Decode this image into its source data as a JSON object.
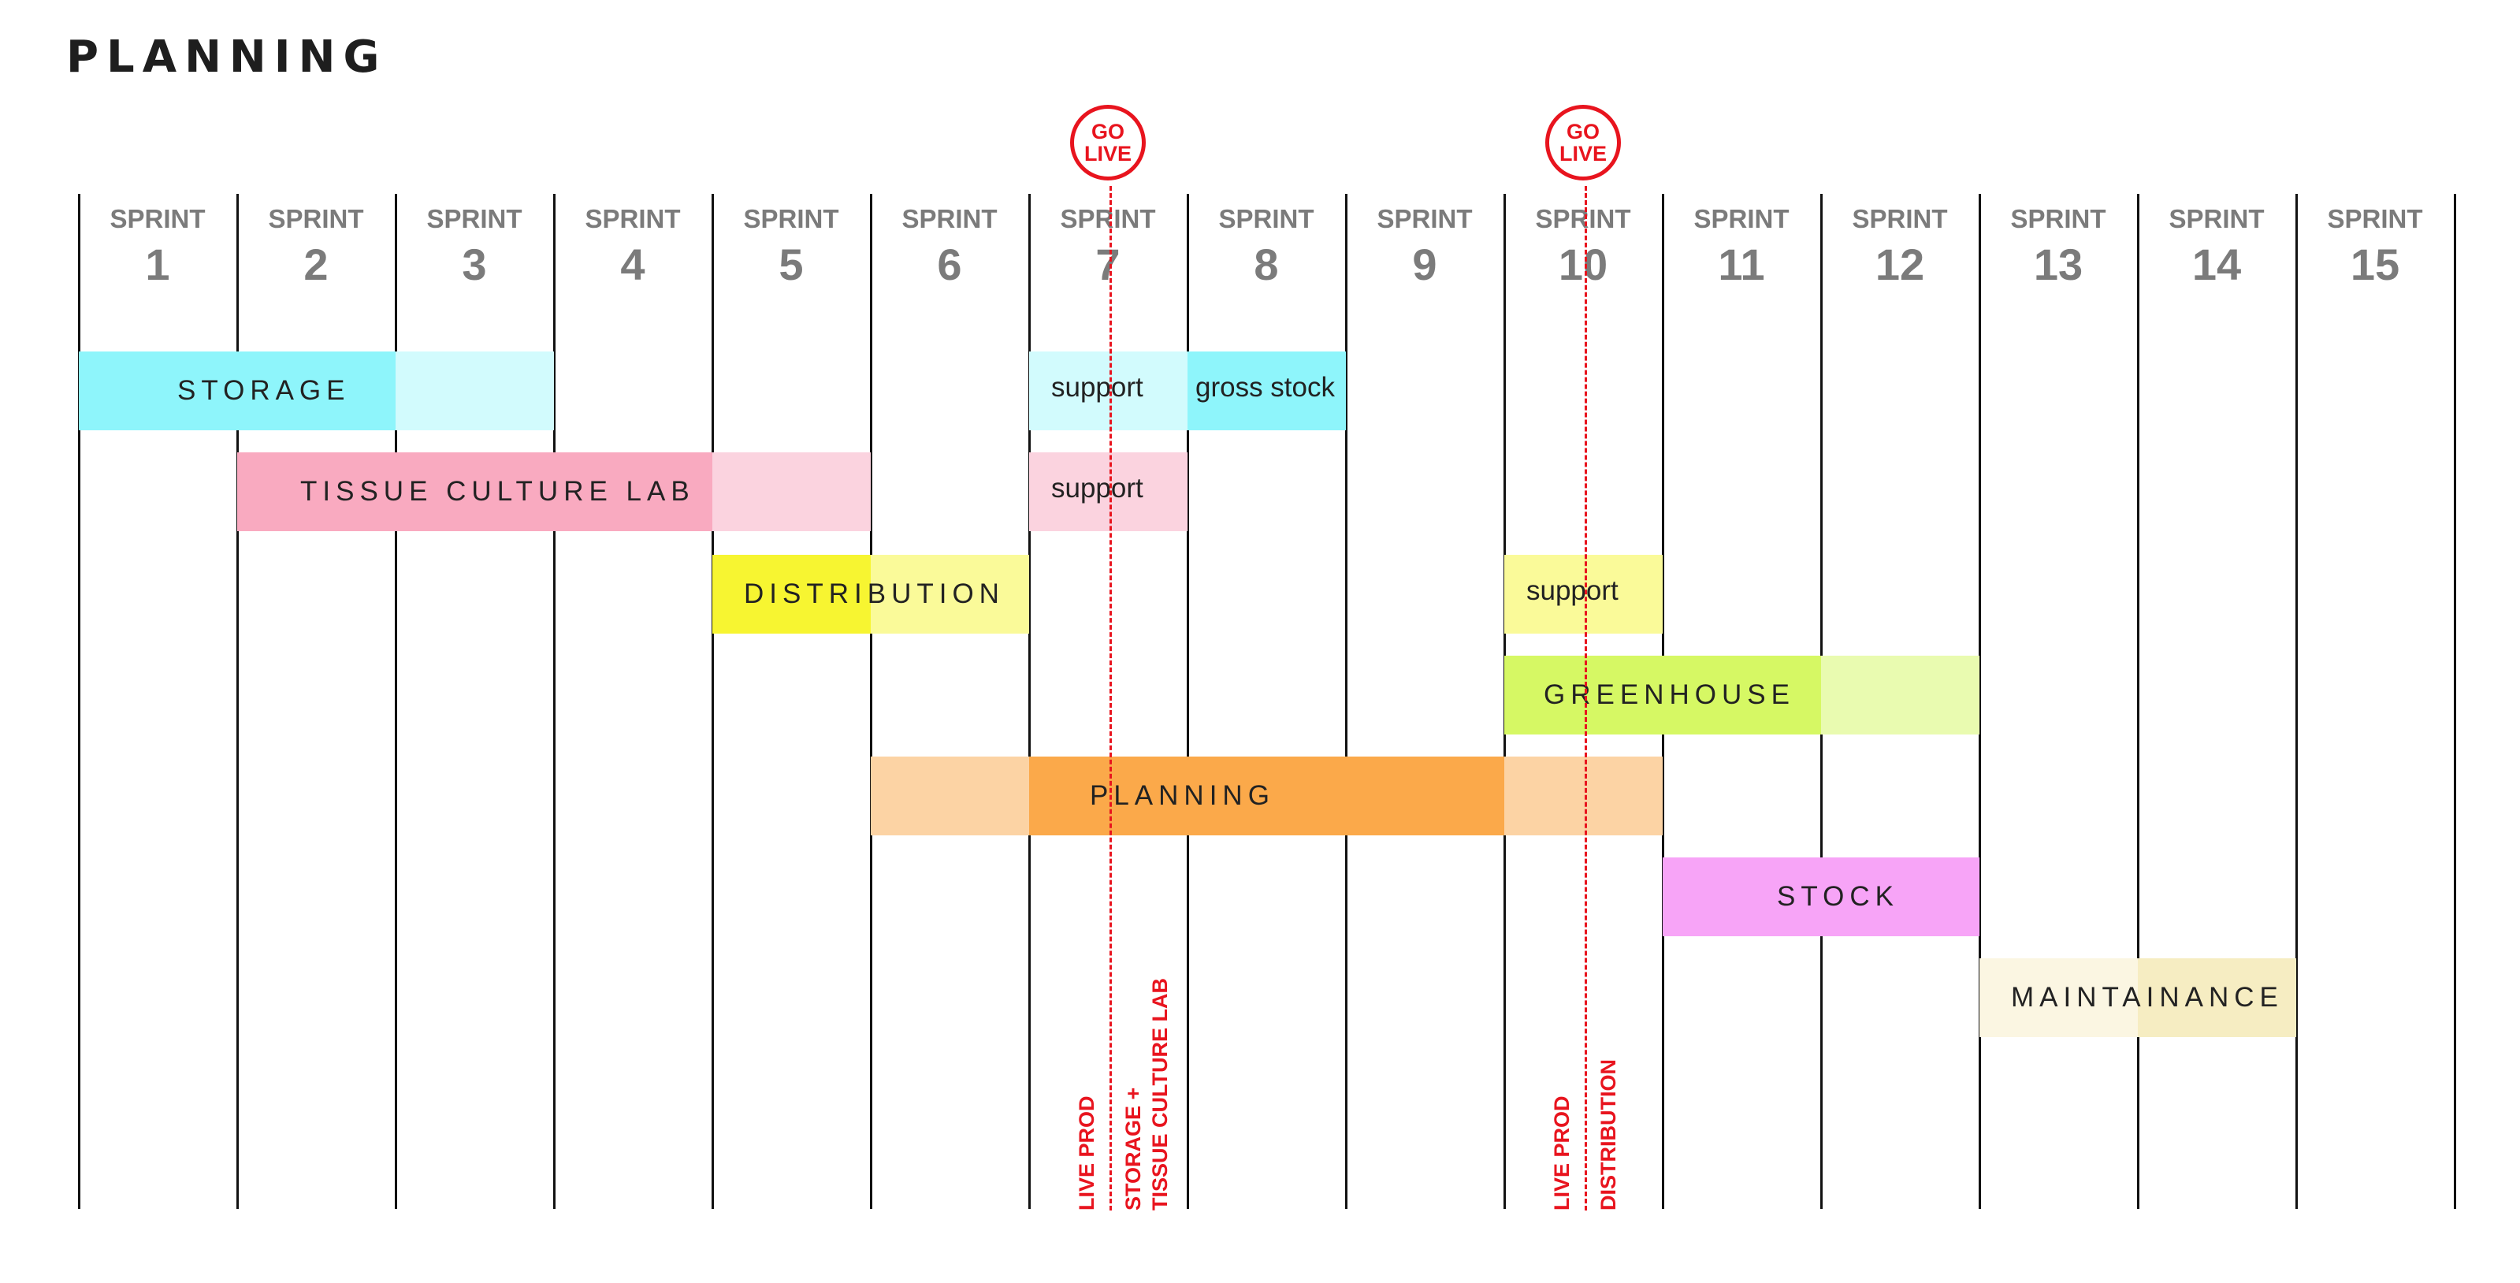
{
  "header": {
    "title": "PLANNING"
  },
  "sprints": [
    {
      "word": "SPRINT",
      "num": "1"
    },
    {
      "word": "SPRINT",
      "num": "2"
    },
    {
      "word": "SPRINT",
      "num": "3"
    },
    {
      "word": "SPRINT",
      "num": "4"
    },
    {
      "word": "SPRINT",
      "num": "5"
    },
    {
      "word": "SPRINT",
      "num": "6"
    },
    {
      "word": "SPRINT",
      "num": "7"
    },
    {
      "word": "SPRINT",
      "num": "8"
    },
    {
      "word": "SPRINT",
      "num": "9"
    },
    {
      "word": "SPRINT",
      "num": "10"
    },
    {
      "word": "SPRINT",
      "num": "11"
    },
    {
      "word": "SPRINT",
      "num": "12"
    },
    {
      "word": "SPRINT",
      "num": "13"
    },
    {
      "word": "SPRINT",
      "num": "14"
    },
    {
      "word": "SPRINT",
      "num": "15"
    }
  ],
  "workstreams": [
    {
      "label": "STORAGE",
      "strong": "#8ef5fb",
      "light": "#d2fbfd",
      "segments": [
        {
          "start": 1,
          "end": 2,
          "tone": "strong"
        },
        {
          "start": 3,
          "end": 3,
          "tone": "light"
        }
      ]
    },
    {
      "label": "support",
      "strong": "#8ef5fb",
      "light": "#d2fbfd",
      "segments": [
        {
          "start": 7,
          "end": 7,
          "tone": "light"
        }
      ]
    },
    {
      "label": "gross stock",
      "strong": "#8ef5fb",
      "light": "#d2fbfd",
      "segments": [
        {
          "start": 8,
          "end": 8,
          "tone": "strong"
        }
      ]
    },
    {
      "label": "TISSUE CULTURE LAB",
      "strong": "#f9aac0",
      "light": "#fbd3df",
      "segments": [
        {
          "start": 2,
          "end": 4,
          "tone": "strong"
        },
        {
          "start": 5,
          "end": 5,
          "tone": "light"
        }
      ]
    },
    {
      "label": "support",
      "strong": "#f9aac0",
      "light": "#fbd3df",
      "segments": [
        {
          "start": 7,
          "end": 7,
          "tone": "light"
        }
      ]
    },
    {
      "label": "DISTRIBUTION",
      "strong": "#f7f531",
      "light": "#fafa99",
      "segments": [
        {
          "start": 5,
          "end": 5,
          "tone": "strong"
        },
        {
          "start": 6,
          "end": 6,
          "tone": "light"
        }
      ]
    },
    {
      "label": "support",
      "strong": "#f7f531",
      "light": "#fafa99",
      "segments": [
        {
          "start": 10,
          "end": 10,
          "tone": "light"
        }
      ]
    },
    {
      "label": "GREENHOUSE",
      "strong": "#d6f864",
      "light": "#e9fbb0",
      "segments": [
        {
          "start": 10,
          "end": 11,
          "tone": "strong"
        },
        {
          "start": 12,
          "end": 12,
          "tone": "light"
        }
      ]
    },
    {
      "label": "PLANNING",
      "strong": "#fba94a",
      "light": "#fcd3a4",
      "segments": [
        {
          "start": 6,
          "end": 6,
          "tone": "light"
        },
        {
          "start": 7,
          "end": 9,
          "tone": "strong"
        },
        {
          "start": 10,
          "end": 10,
          "tone": "light"
        }
      ]
    },
    {
      "label": "STOCK",
      "strong": "#f7a4f7",
      "light": "#fbd1fb",
      "segments": [
        {
          "start": 11,
          "end": 12,
          "tone": "strong"
        }
      ]
    },
    {
      "label": "MAINTAINANCE",
      "strong": "#f6edc2",
      "light": "#fbf6e2",
      "segments": [
        {
          "start": 13,
          "end": 13,
          "tone": "light"
        },
        {
          "start": 14,
          "end": 14,
          "tone": "strong"
        }
      ]
    }
  ],
  "milestones": [
    {
      "badge_line1": "GO",
      "badge_line2": "LIVE",
      "sprint": 7,
      "left_text": "LIVE PROD",
      "right_lines": [
        "STORAGE +",
        "TISSUE CULTURE LAB"
      ],
      "color": "#e8141e"
    },
    {
      "badge_line1": "GO",
      "badge_line2": "LIVE",
      "sprint": 10,
      "left_text": "LIVE PROD",
      "right_lines": [
        "DISTRIBUTION"
      ],
      "color": "#e8141e"
    }
  ]
}
